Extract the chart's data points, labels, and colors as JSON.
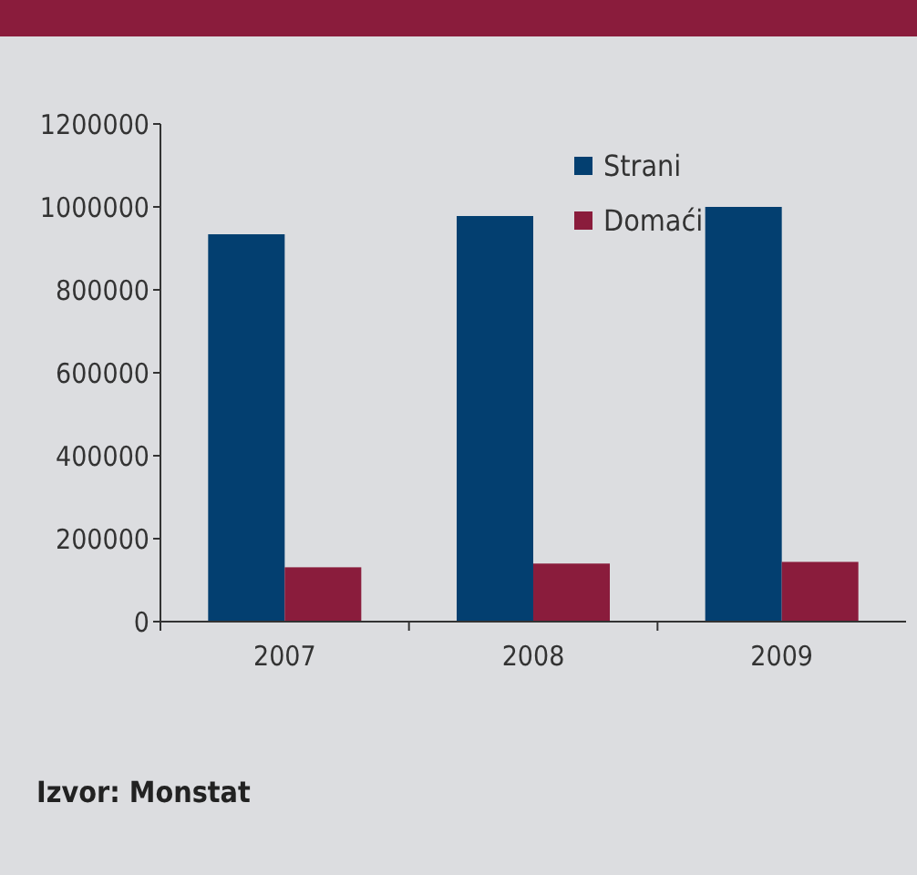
{
  "chart_data": {
    "type": "bar",
    "categories": [
      "2007",
      "2008",
      "2009"
    ],
    "series": [
      {
        "name": "Strani",
        "color": "#033f70",
        "values": [
          934000,
          978000,
          1000000
        ]
      },
      {
        "name": "Domaći",
        "color": "#8a1c3c",
        "values": [
          131000,
          140000,
          144000
        ]
      }
    ],
    "ylim": [
      0,
      1200000
    ],
    "yticks": [
      0,
      200000,
      400000,
      600000,
      800000,
      1000000,
      1200000
    ],
    "grid": false,
    "legend": "top right",
    "annotations": [
      "Izvor: Monstat"
    ]
  }
}
